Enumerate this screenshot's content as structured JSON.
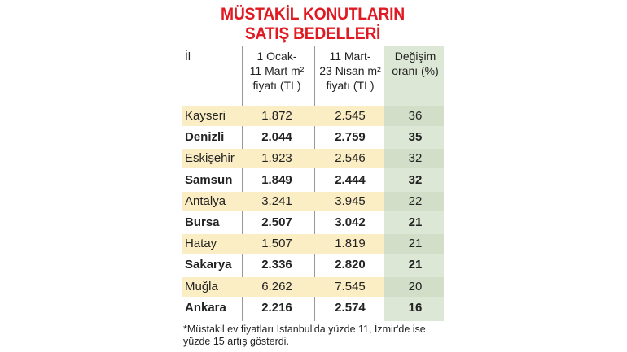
{
  "chart_data": {
    "type": "table",
    "title_line1": "MÜSTAKİL KONUTLARIN",
    "title_line2": "SATIŞ BEDELLERİ",
    "headers": {
      "il": "İl",
      "col1_l1": "1 Ocak-",
      "col1_l2": "11 Mart m²",
      "col1_l3": "fiyatı (TL)",
      "col2_l1": "11 Mart-",
      "col2_l2": "23 Nisan m²",
      "col2_l3": "fiyatı (TL)",
      "col3_l1": "Değişim",
      "col3_l2": "oranı (%)"
    },
    "rows": [
      {
        "il": "Kayseri",
        "v1": "1.872",
        "v2": "2.545",
        "v3": "36"
      },
      {
        "il": "Denizli",
        "v1": "2.044",
        "v2": "2.759",
        "v3": "35"
      },
      {
        "il": "Eskişehir",
        "v1": "1.923",
        "v2": "2.546",
        "v3": "32"
      },
      {
        "il": "Samsun",
        "v1": "1.849",
        "v2": "2.444",
        "v3": "32"
      },
      {
        "il": "Antalya",
        "v1": "3.241",
        "v2": "3.945",
        "v3": "22"
      },
      {
        "il": "Bursa",
        "v1": "2.507",
        "v2": "3.042",
        "v3": "21"
      },
      {
        "il": "Hatay",
        "v1": "1.507",
        "v2": "1.819",
        "v3": "21"
      },
      {
        "il": "Sakarya",
        "v1": "2.336",
        "v2": "2.820",
        "v3": "21"
      },
      {
        "il": "Muğla",
        "v1": "6.262",
        "v2": "7.545",
        "v3": "20"
      },
      {
        "il": "Ankara",
        "v1": "2.216",
        "v2": "2.574",
        "v3": "16"
      }
    ],
    "footnote_l1": "*Müstakil ev fiyatları İstanbul'da yüzde 11, İzmir'de ise",
    "footnote_l2": "yüzde 15 artış gösterdi."
  }
}
